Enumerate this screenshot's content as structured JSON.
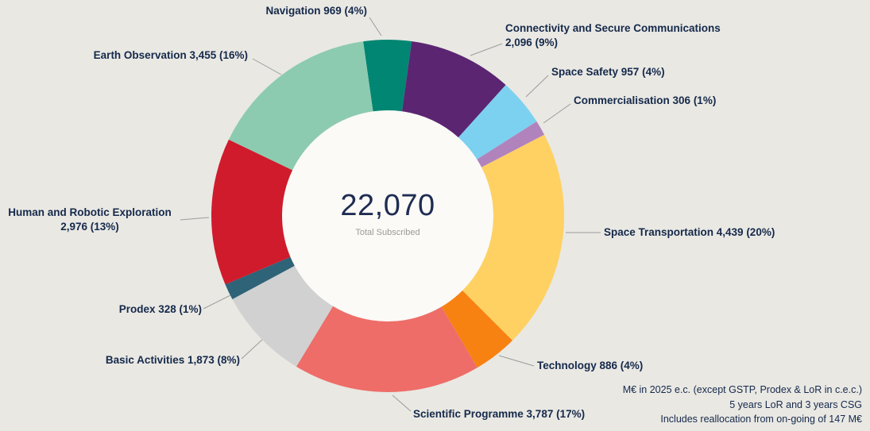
{
  "background": "#e9e8e3",
  "text_color": "#15294b",
  "center": {
    "total": "22,070",
    "subtitle": "Total Subscribed"
  },
  "footnotes": [
    "M€ in 2025 e.c. (except GSTP, Prodex & LoR in c.e.c.)",
    "5 years LoR and 3 years CSG",
    "Includes reallocation from on-going of 147 M€"
  ],
  "chart_data": {
    "type": "pie",
    "subtype": "donut",
    "title": "",
    "center_value": 22070,
    "center_label": "Total Subscribed",
    "legend_position": "callout-labels",
    "segments": [
      {
        "name": "Navigation",
        "value": 969,
        "pct": "4%",
        "color": "#008672",
        "label": "Navigation 969 (4%)"
      },
      {
        "name": "Connectivity and Secure Communications",
        "value": 2096,
        "pct": "9%",
        "color": "#5b2572",
        "label": "Connectivity and Secure Communications\n2,096 (9%)"
      },
      {
        "name": "Space Safety",
        "value": 957,
        "pct": "4%",
        "color": "#7cd1f0",
        "label": "Space Safety 957 (4%)"
      },
      {
        "name": "Commercialisation",
        "value": 306,
        "pct": "1%",
        "color": "#b183bd",
        "label": "Commercialisation 306 (1%)"
      },
      {
        "name": "Space Transportation",
        "value": 4439,
        "pct": "20%",
        "color": "#fed162",
        "label": "Space Transportation 4,439 (20%)"
      },
      {
        "name": "Technology",
        "value": 886,
        "pct": "4%",
        "color": "#f78212",
        "label": "Technology 886 (4%)"
      },
      {
        "name": "Scientific Programme",
        "value": 3787,
        "pct": "17%",
        "color": "#ee6d68",
        "label": "Scientific Programme 3,787 (17%)"
      },
      {
        "name": "Basic Activities",
        "value": 1873,
        "pct": "8%",
        "color": "#d1d1d1",
        "label": "Basic Activities 1,873 (8%)"
      },
      {
        "name": "Prodex",
        "value": 328,
        "pct": "1%",
        "color": "#2e6378",
        "label": "Prodex 328 (1%)"
      },
      {
        "name": "Human and Robotic Exploration",
        "value": 2976,
        "pct": "13%",
        "color": "#d01b2c",
        "label": "Human and Robotic Exploration\n2,976 (13%)"
      },
      {
        "name": "Earth Observation",
        "value": 3455,
        "pct": "16%",
        "color": "#8ccbb0",
        "label": "Earth Observation 3,455 (16%)"
      }
    ]
  }
}
